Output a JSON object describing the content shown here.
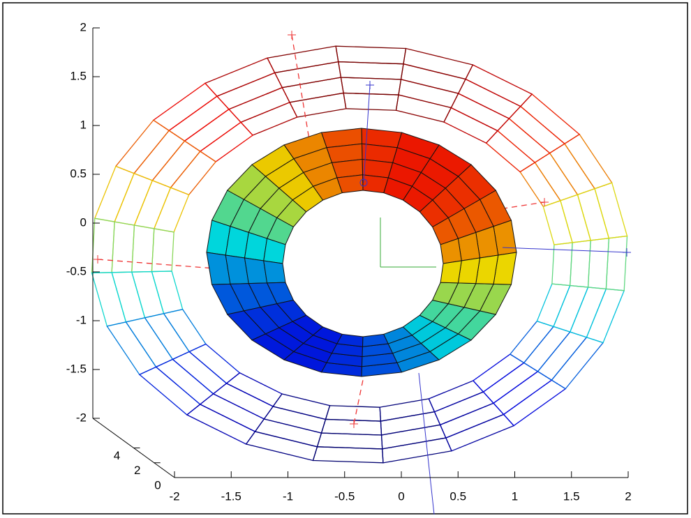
{
  "chart_data": {
    "type": "surface3d",
    "xlim": [
      -2,
      2
    ],
    "xticks": [
      -2,
      -1.5,
      -1,
      -0.5,
      0,
      0.5,
      1,
      1.5,
      2
    ],
    "ylim": [
      0,
      8
    ],
    "yticks": [
      0,
      2,
      4
    ],
    "zlim": [
      -2,
      2
    ],
    "zticks": [
      -2,
      -1.5,
      -1,
      -0.5,
      0,
      0.5,
      1,
      1.5,
      2
    ]
  }
}
